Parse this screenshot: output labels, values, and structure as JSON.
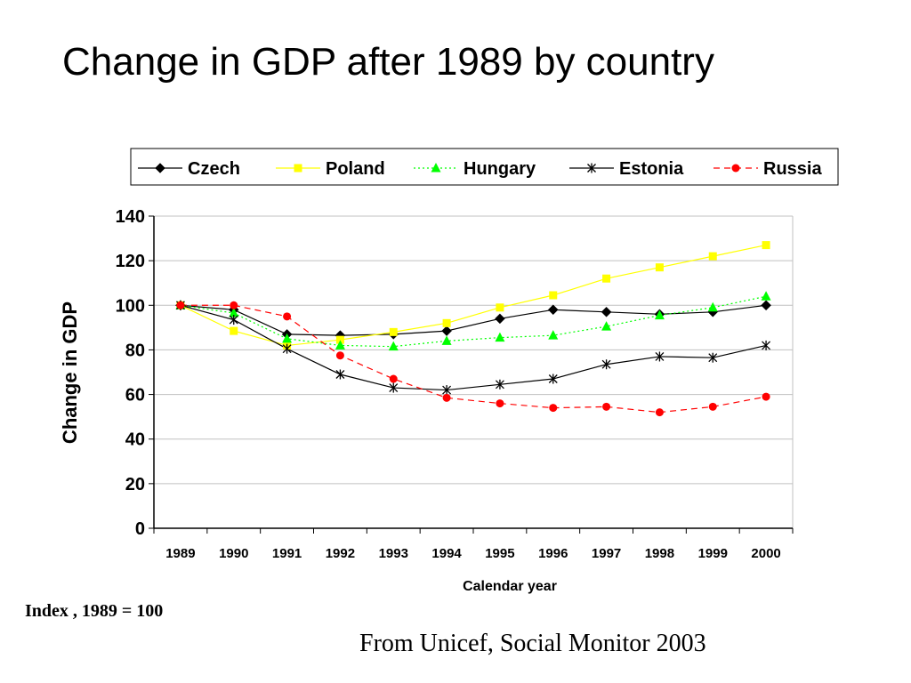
{
  "slide": {
    "title": "Change in GDP after 1989 by country",
    "note": "Index , 1989 = 100",
    "source": "From Unicef, Social Monitor 2003"
  },
  "chart_data": {
    "type": "line",
    "title": "",
    "xlabel": "Calendar year",
    "ylabel": "Change in GDP",
    "ylim": [
      0,
      140
    ],
    "yticks": [
      0,
      20,
      40,
      60,
      80,
      100,
      120,
      140
    ],
    "grid": true,
    "legend": "top",
    "categories": [
      "1989",
      "1990",
      "1991",
      "1992",
      "1993",
      "1994",
      "1995",
      "1996",
      "1997",
      "1998",
      "1999",
      "2000"
    ],
    "series": [
      {
        "name": "Czech",
        "color": "#000000",
        "marker": "diamond",
        "dash": "solid",
        "values": [
          100,
          98,
          87,
          86.5,
          87,
          88.5,
          94,
          98,
          97,
          96,
          97,
          100
        ]
      },
      {
        "name": "Poland",
        "color": "#ffff00",
        "marker": "square",
        "dash": "solid",
        "values": [
          100,
          88.5,
          82,
          84.5,
          88,
          92,
          99,
          104.5,
          112,
          117,
          122,
          127
        ]
      },
      {
        "name": "Hungary",
        "color": "#00ff00",
        "marker": "triangle",
        "dash": "dotted",
        "values": [
          100,
          96.5,
          85,
          82,
          81.5,
          84,
          85.5,
          86.5,
          90.5,
          95.5,
          99,
          104
        ]
      },
      {
        "name": "Estonia",
        "color": "#000000",
        "marker": "asterisk",
        "dash": "solid",
        "values": [
          100,
          93.5,
          80.5,
          69,
          63,
          62,
          64.5,
          67,
          73.5,
          77,
          76.5,
          82
        ]
      },
      {
        "name": "Russia",
        "color": "#ff0000",
        "marker": "circle",
        "dash": "dashed",
        "values": [
          100,
          100,
          95,
          77.5,
          67,
          58.5,
          56,
          54,
          54.5,
          52,
          54.5,
          59
        ]
      }
    ]
  }
}
